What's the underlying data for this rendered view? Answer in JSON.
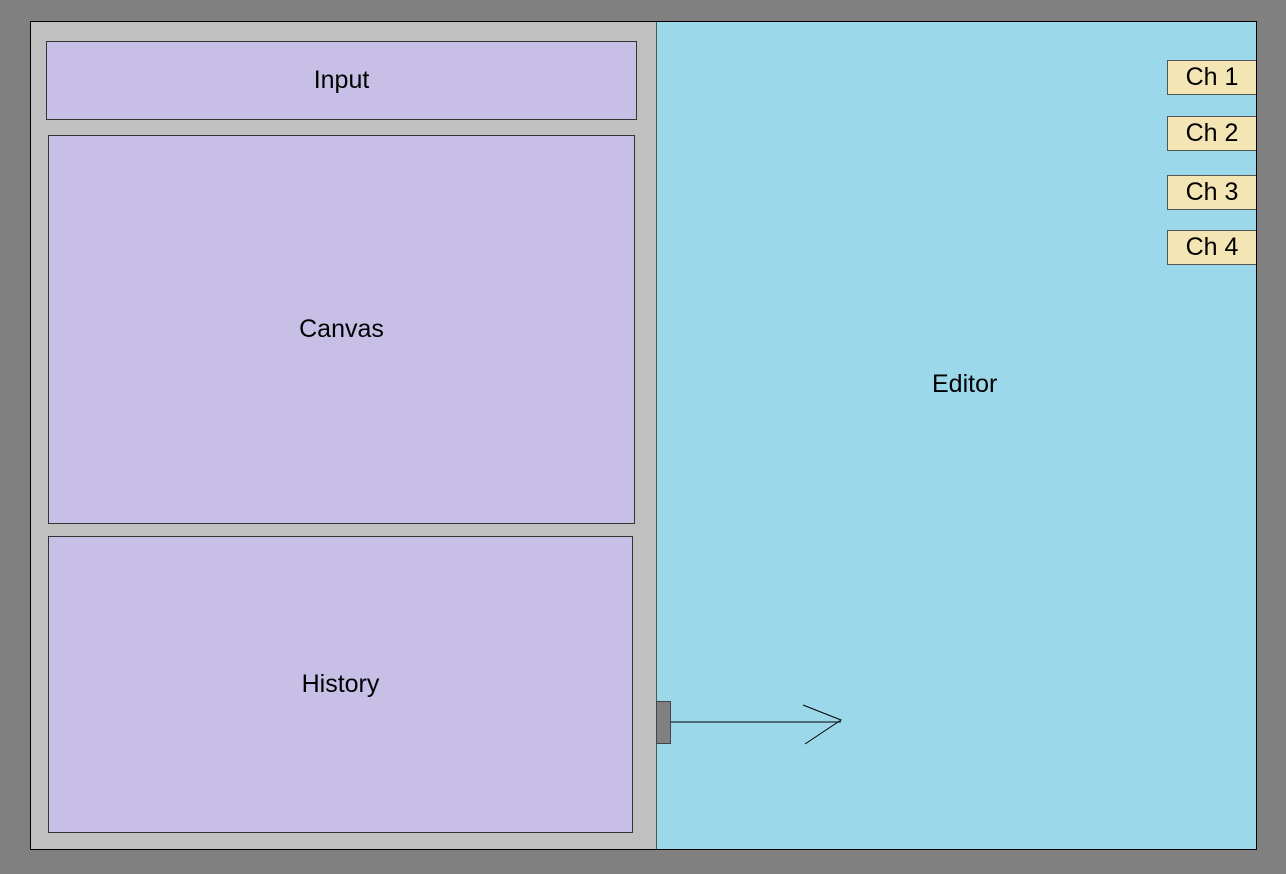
{
  "panels": {
    "input_label": "Input",
    "canvas_label": "Canvas",
    "history_label": "History",
    "editor_label": "Editor"
  },
  "chapters": [
    {
      "label": "Ch 1"
    },
    {
      "label": "Ch 2"
    },
    {
      "label": "Ch 3"
    },
    {
      "label": "Ch 4"
    }
  ],
  "colors": {
    "background": "#808080",
    "left_panel": "#c0c0c0",
    "panel_box": "#c7bfe6",
    "editor": "#9bd9ea",
    "chapter_tab": "#f4e6b4",
    "handle": "#808080"
  }
}
